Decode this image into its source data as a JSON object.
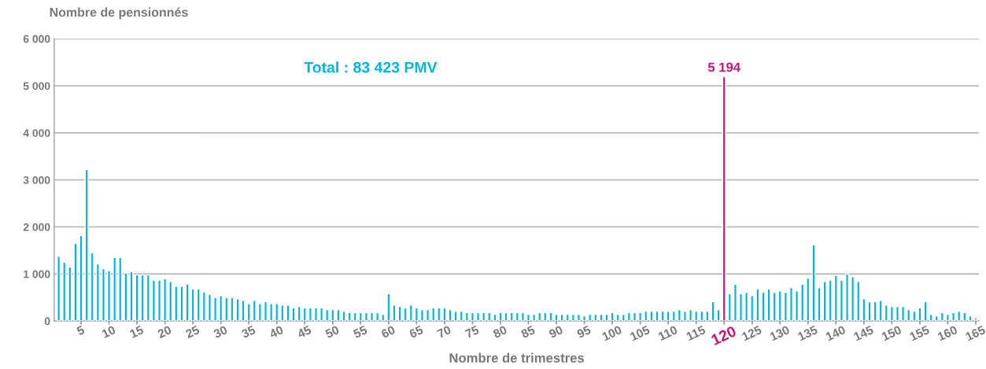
{
  "chart_data": {
    "type": "bar",
    "xlabel": "Nombre de trimestres",
    "ylabel": "Nombre de pensionnés",
    "annotations": [
      "Total : 83 423 PMV"
    ],
    "categories": [
      null,
      null,
      null,
      null,
      "5",
      null,
      null,
      null,
      null,
      "10",
      null,
      null,
      null,
      null,
      "15",
      null,
      null,
      null,
      null,
      "20",
      null,
      null,
      null,
      null,
      "25",
      null,
      null,
      null,
      null,
      "30",
      null,
      null,
      null,
      null,
      "35",
      null,
      null,
      null,
      null,
      "40",
      null,
      null,
      null,
      null,
      "45",
      null,
      null,
      null,
      null,
      "50",
      null,
      null,
      null,
      null,
      "55",
      null,
      null,
      null,
      null,
      "60",
      null,
      null,
      null,
      null,
      "65",
      null,
      null,
      null,
      null,
      "70",
      null,
      null,
      null,
      null,
      "75",
      null,
      null,
      null,
      null,
      "80",
      null,
      null,
      null,
      null,
      "85",
      null,
      null,
      null,
      null,
      "90",
      null,
      null,
      null,
      null,
      "95",
      null,
      null,
      null,
      null,
      "100",
      null,
      null,
      null,
      null,
      "105",
      null,
      null,
      null,
      null,
      "110",
      null,
      null,
      null,
      null,
      "115",
      null,
      null,
      null,
      null,
      "120",
      null,
      null,
      null,
      null,
      "125",
      null,
      null,
      null,
      null,
      "130",
      null,
      null,
      null,
      null,
      "135",
      null,
      null,
      null,
      null,
      "140",
      null,
      null,
      null,
      null,
      "145",
      null,
      null,
      null,
      null,
      "150",
      null,
      null,
      null,
      null,
      "155",
      null,
      null,
      null,
      null,
      "160",
      null,
      null,
      null,
      null,
      "165"
    ],
    "values": [
      1380,
      1250,
      1150,
      1650,
      1820,
      3220,
      1450,
      1210,
      1110,
      1070,
      1350,
      1350,
      1020,
      1050,
      980,
      980,
      980,
      870,
      870,
      900,
      840,
      740,
      740,
      780,
      680,
      680,
      620,
      570,
      500,
      540,
      500,
      500,
      470,
      440,
      370,
      440,
      370,
      410,
      370,
      370,
      340,
      340,
      280,
      310,
      280,
      280,
      280,
      280,
      240,
      240,
      240,
      210,
      180,
      180,
      180,
      180,
      180,
      180,
      140,
      580,
      340,
      310,
      280,
      340,
      280,
      240,
      240,
      280,
      280,
      280,
      240,
      210,
      210,
      180,
      180,
      180,
      180,
      180,
      140,
      180,
      180,
      180,
      180,
      180,
      140,
      140,
      180,
      180,
      180,
      140,
      140,
      140,
      140,
      140,
      110,
      140,
      140,
      140,
      140,
      180,
      140,
      140,
      180,
      180,
      180,
      210,
      210,
      210,
      210,
      210,
      210,
      240,
      210,
      240,
      210,
      210,
      210,
      410,
      240,
      5194,
      580,
      780,
      580,
      610,
      540,
      680,
      610,
      680,
      610,
      640,
      610,
      710,
      640,
      780,
      910,
      1620,
      710,
      840,
      870,
      970,
      870,
      1000,
      940,
      840,
      470,
      410,
      410,
      440,
      340,
      310,
      310,
      310,
      240,
      210,
      280,
      410,
      140,
      110,
      180,
      140,
      180,
      210,
      180,
      110,
      40
    ],
    "colors": [
      "#00b5e2",
      "#00b5e2",
      "#00b5e2",
      "#00b5e2",
      "#00b5e2",
      "#00b5e2",
      "#00b5e2",
      "#00b5e2",
      "#00b5e2",
      "#00b5e2",
      "#00b5e2",
      "#00b5e2",
      "#00b5e2",
      "#00b5e2",
      "#00b5e2",
      "#00b5e2",
      "#00b5e2",
      "#00b5e2",
      "#00b5e2",
      "#00b5e2",
      "#00b5e2",
      "#00b5e2",
      "#00b5e2",
      "#00b5e2",
      "#00b5e2",
      "#00b5e2",
      "#00b5e2",
      "#00b5e2",
      "#00b5e2",
      "#00b5e2",
      "#00b5e2",
      "#00b5e2",
      "#00b5e2",
      "#00b5e2",
      "#00b5e2",
      "#00b5e2",
      "#00b5e2",
      "#00b5e2",
      "#00b5e2",
      "#00b5e2",
      "#00b5e2",
      "#00b5e2",
      "#00b5e2",
      "#00b5e2",
      "#00b5e2",
      "#00b5e2",
      "#00b5e2",
      "#00b5e2",
      "#00b5e2",
      "#00b5e2",
      "#00b5e2",
      "#00b5e2",
      "#00b5e2",
      "#00b5e2",
      "#00b5e2",
      "#00b5e2",
      "#00b5e2",
      "#00b5e2",
      "#00b5e2",
      "#00b5e2",
      "#00b5e2",
      "#00b5e2",
      "#00b5e2",
      "#00b5e2",
      "#00b5e2",
      "#00b5e2",
      "#00b5e2",
      "#00b5e2",
      "#00b5e2",
      "#00b5e2",
      "#00b5e2",
      "#00b5e2",
      "#00b5e2",
      "#00b5e2",
      "#00b5e2",
      "#00b5e2",
      "#00b5e2",
      "#00b5e2",
      "#00b5e2",
      "#00b5e2",
      "#00b5e2",
      "#00b5e2",
      "#00b5e2",
      "#00b5e2",
      "#00b5e2",
      "#00b5e2",
      "#00b5e2",
      "#00b5e2",
      "#00b5e2",
      "#00b5e2",
      "#00b5e2",
      "#00b5e2",
      "#00b5e2",
      "#00b5e2",
      "#00b5e2",
      "#00b5e2",
      "#00b5e2",
      "#00b5e2",
      "#00b5e2",
      "#00b5e2",
      "#00b5e2",
      "#00b5e2",
      "#00b5e2",
      "#00b5e2",
      "#00b5e2",
      "#00b5e2",
      "#00b5e2",
      "#00b5e2",
      "#00b5e2",
      "#00b5e2",
      "#00b5e2",
      "#00b5e2",
      "#00b5e2",
      "#00b5e2",
      "#00b5e2",
      "#00b5e2",
      "#00b5e2",
      "#00b5e2",
      "#00b5e2",
      "#c4157e",
      "#00b5e2",
      "#00b5e2",
      "#00b5e2",
      "#00b5e2",
      "#00b5e2",
      "#00b5e2",
      "#00b5e2",
      "#00b5e2",
      "#00b5e2",
      "#00b5e2",
      "#00b5e2",
      "#00b5e2",
      "#00b5e2",
      "#00b5e2",
      "#00b5e2",
      "#00b5e2",
      "#00b5e2",
      "#00b5e2",
      "#00b5e2",
      "#00b5e2",
      "#00b5e2",
      "#00b5e2",
      "#00b5e2",
      "#00b5e2",
      "#00b5e2",
      "#00b5e2",
      "#00b5e2",
      "#00b5e2",
      "#00b5e2",
      "#00b5e2",
      "#00b5e2",
      "#00b5e2",
      "#00b5e2",
      "#00b5e2",
      "#00b5e2",
      "#00b5e2",
      "#00b5e2",
      "#00b5e2",
      "#00b5e2",
      "#00b5e2",
      "#00b5e2",
      "#00b5e2",
      "#00b5e2",
      "#00b5e2",
      "#00b5e2"
    ],
    "value_labels": [
      null,
      null,
      null,
      null,
      null,
      null,
      null,
      null,
      null,
      null,
      null,
      null,
      null,
      null,
      null,
      null,
      null,
      null,
      null,
      null,
      null,
      null,
      null,
      null,
      null,
      null,
      null,
      null,
      null,
      null,
      null,
      null,
      null,
      null,
      null,
      null,
      null,
      null,
      null,
      null,
      null,
      null,
      null,
      null,
      null,
      null,
      null,
      null,
      null,
      null,
      null,
      null,
      null,
      null,
      null,
      null,
      null,
      null,
      null,
      null,
      null,
      null,
      null,
      null,
      null,
      null,
      null,
      null,
      null,
      null,
      null,
      null,
      null,
      null,
      null,
      null,
      null,
      null,
      null,
      null,
      null,
      null,
      null,
      null,
      null,
      null,
      null,
      null,
      null,
      null,
      null,
      null,
      null,
      null,
      null,
      null,
      null,
      null,
      null,
      null,
      null,
      null,
      null,
      null,
      null,
      null,
      null,
      null,
      null,
      null,
      null,
      null,
      null,
      null,
      null,
      null,
      null,
      null,
      null,
      "5 194",
      null,
      null,
      null,
      null,
      null,
      null,
      null,
      null,
      null,
      null,
      null,
      null,
      null,
      null,
      null,
      null,
      null,
      null,
      null,
      null,
      null,
      null,
      null,
      null,
      null,
      null,
      null,
      null,
      null,
      null,
      null,
      null,
      null,
      null,
      null,
      null,
      null,
      null,
      null,
      null,
      null,
      null,
      null,
      null,
      null
    ],
    "ylim": [
      0,
      6000
    ],
    "yticks": [
      0,
      {
        "value": 1000,
        "label": "1 000"
      },
      {
        "value": 2000,
        "label": "2 000"
      },
      {
        "value": 3000,
        "label": "3 000"
      },
      {
        "value": 4000,
        "label": "4 000"
      },
      {
        "value": 5000,
        "label": "5 000"
      },
      {
        "value": 6000,
        "label": "6 000"
      }
    ],
    "grid": "y",
    "legend": false
  }
}
